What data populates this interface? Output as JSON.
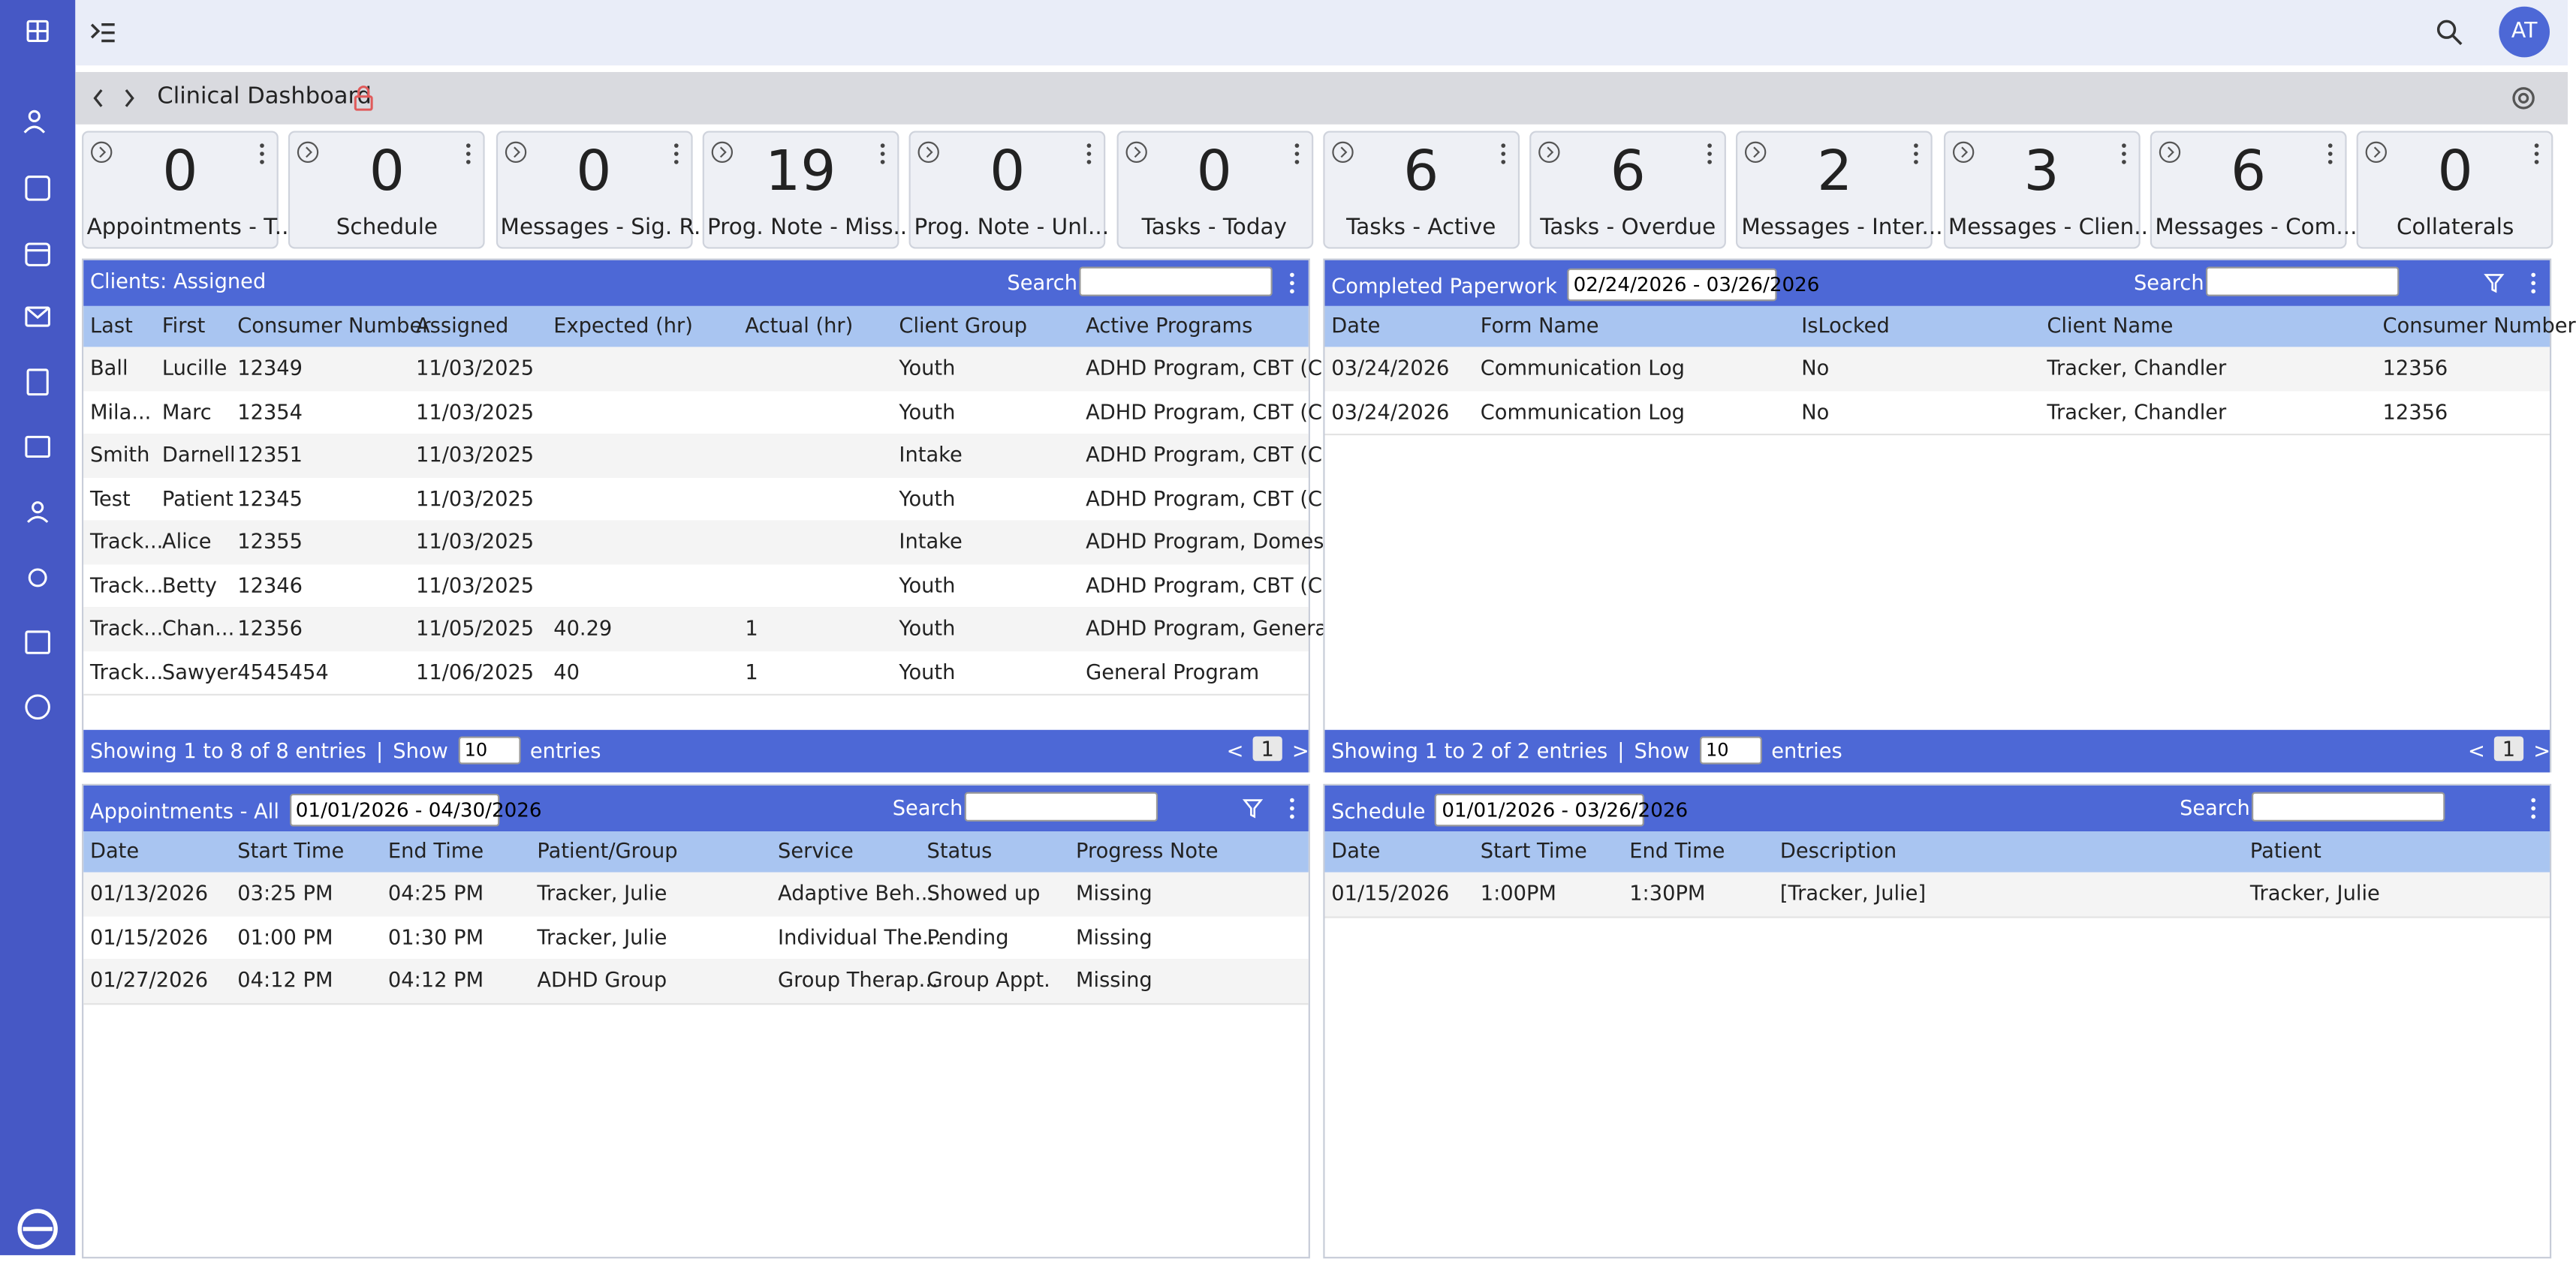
{
  "header": {
    "title": "Clinical Dashboard",
    "user_initials": "AT"
  },
  "tiles": [
    {
      "value": 0,
      "label": "Appointments - T..."
    },
    {
      "value": 0,
      "label": "Schedule"
    },
    {
      "value": 0,
      "label": "Messages - Sig. R..."
    },
    {
      "value": 19,
      "label": "Prog. Note - Miss..."
    },
    {
      "value": 0,
      "label": "Prog. Note - Unl..."
    },
    {
      "value": 0,
      "label": "Tasks - Today"
    },
    {
      "value": 6,
      "label": "Tasks - Active"
    },
    {
      "value": 6,
      "label": "Tasks - Overdue"
    },
    {
      "value": 2,
      "label": "Messages - Inter..."
    },
    {
      "value": 3,
      "label": "Messages - Clien..."
    },
    {
      "value": 6,
      "label": "Messages - Com..."
    },
    {
      "value": 0,
      "label": "Collaterals"
    }
  ],
  "panels": [
    {
      "title": "Clients: Assigned",
      "search_label": "Search:",
      "columns": [
        "Last",
        "First",
        "Consumer Number",
        "Assigned",
        "Expected (hr)",
        "Actual (hr)",
        "Client Group",
        "Active Programs"
      ],
      "rows": [
        [
          "Ball",
          "Lucille",
          "12349",
          "11/03/2025",
          null,
          null,
          "Youth",
          "ADHD Program, CBT (C..."
        ],
        [
          "Mila...",
          "Marc",
          "12354",
          "11/03/2025",
          null,
          null,
          "Youth",
          "ADHD Program, CBT (C..."
        ],
        [
          "Smith",
          "Darnell",
          "12351",
          "11/03/2025",
          null,
          null,
          "Intake",
          "ADHD Program, CBT (C..."
        ],
        [
          "Test",
          "Patient",
          "12345",
          "11/03/2025",
          null,
          null,
          "Youth",
          "ADHD Program, CBT (C..."
        ],
        [
          "Track...",
          "Alice",
          "12355",
          "11/03/2025",
          null,
          null,
          "Intake",
          "ADHD Program, Domes..."
        ],
        [
          "Track...",
          "Betty",
          "12346",
          "11/03/2025",
          null,
          null,
          "Youth",
          "ADHD Program, CBT (C..."
        ],
        [
          "Track...",
          "Chan...",
          "12356",
          "11/05/2025",
          "40.29",
          "1",
          "Youth",
          "ADHD Program, Genera..."
        ],
        [
          "Track...",
          "Sawyer",
          "4545454",
          "11/06/2025",
          "40",
          "1",
          "Youth",
          "General Program"
        ]
      ],
      "footer": {
        "summary": "Showing 1 to 8 of 8 entries",
        "separator": "|",
        "show_label": "Show",
        "page_size": 10,
        "entries_label": "entries",
        "prev": "<",
        "page": 1,
        "next": ">"
      }
    },
    {
      "title": "Completed Paperwork",
      "date_range": "02/24/2026 - 03/26/2026",
      "search_label": "Search:",
      "columns": [
        "Date",
        "Form Name",
        "IsLocked",
        "Client Name",
        "Consumer Number"
      ],
      "rows": [
        [
          "03/24/2026",
          "Communication Log",
          "No",
          "Tracker, Chandler",
          "12356"
        ],
        [
          "03/24/2026",
          "Communication Log",
          "No",
          "Tracker, Chandler",
          "12356"
        ]
      ],
      "footer": {
        "summary": "Showing 1 to 2 of 2 entries",
        "separator": "|",
        "show_label": "Show",
        "page_size": 10,
        "entries_label": "entries",
        "prev": "<",
        "page": 1,
        "next": ">"
      }
    },
    {
      "title": "Appointments - All",
      "date_range": "01/01/2026 - 04/30/2026",
      "search_label": "Search:",
      "columns": [
        "Date",
        "Start Time",
        "End Time",
        "Patient/Group",
        "Service",
        "Status",
        "Progress Note"
      ],
      "rows": [
        [
          "01/13/2026",
          "03:25 PM",
          "04:25 PM",
          "Tracker, Julie",
          "Adaptive Beh...",
          "Showed up",
          "Missing"
        ],
        [
          "01/15/2026",
          "01:00 PM",
          "01:30 PM",
          "Tracker, Julie",
          "Individual The...",
          "Pending",
          "Missing"
        ],
        [
          "01/27/2026",
          "04:12 PM",
          "04:12 PM",
          "ADHD Group",
          "Group Therap...",
          "Group Appt.",
          "Missing"
        ]
      ]
    },
    {
      "title": "Schedule",
      "date_range": "01/01/2026 - 03/26/2026",
      "search_label": "Search:",
      "columns": [
        "Date",
        "Start Time",
        "End Time",
        "Description",
        "Patient"
      ],
      "rows": [
        [
          "01/15/2026",
          "1:00PM",
          "1:30PM",
          "[Tracker, Julie]",
          "Tracker, Julie"
        ]
      ]
    }
  ]
}
